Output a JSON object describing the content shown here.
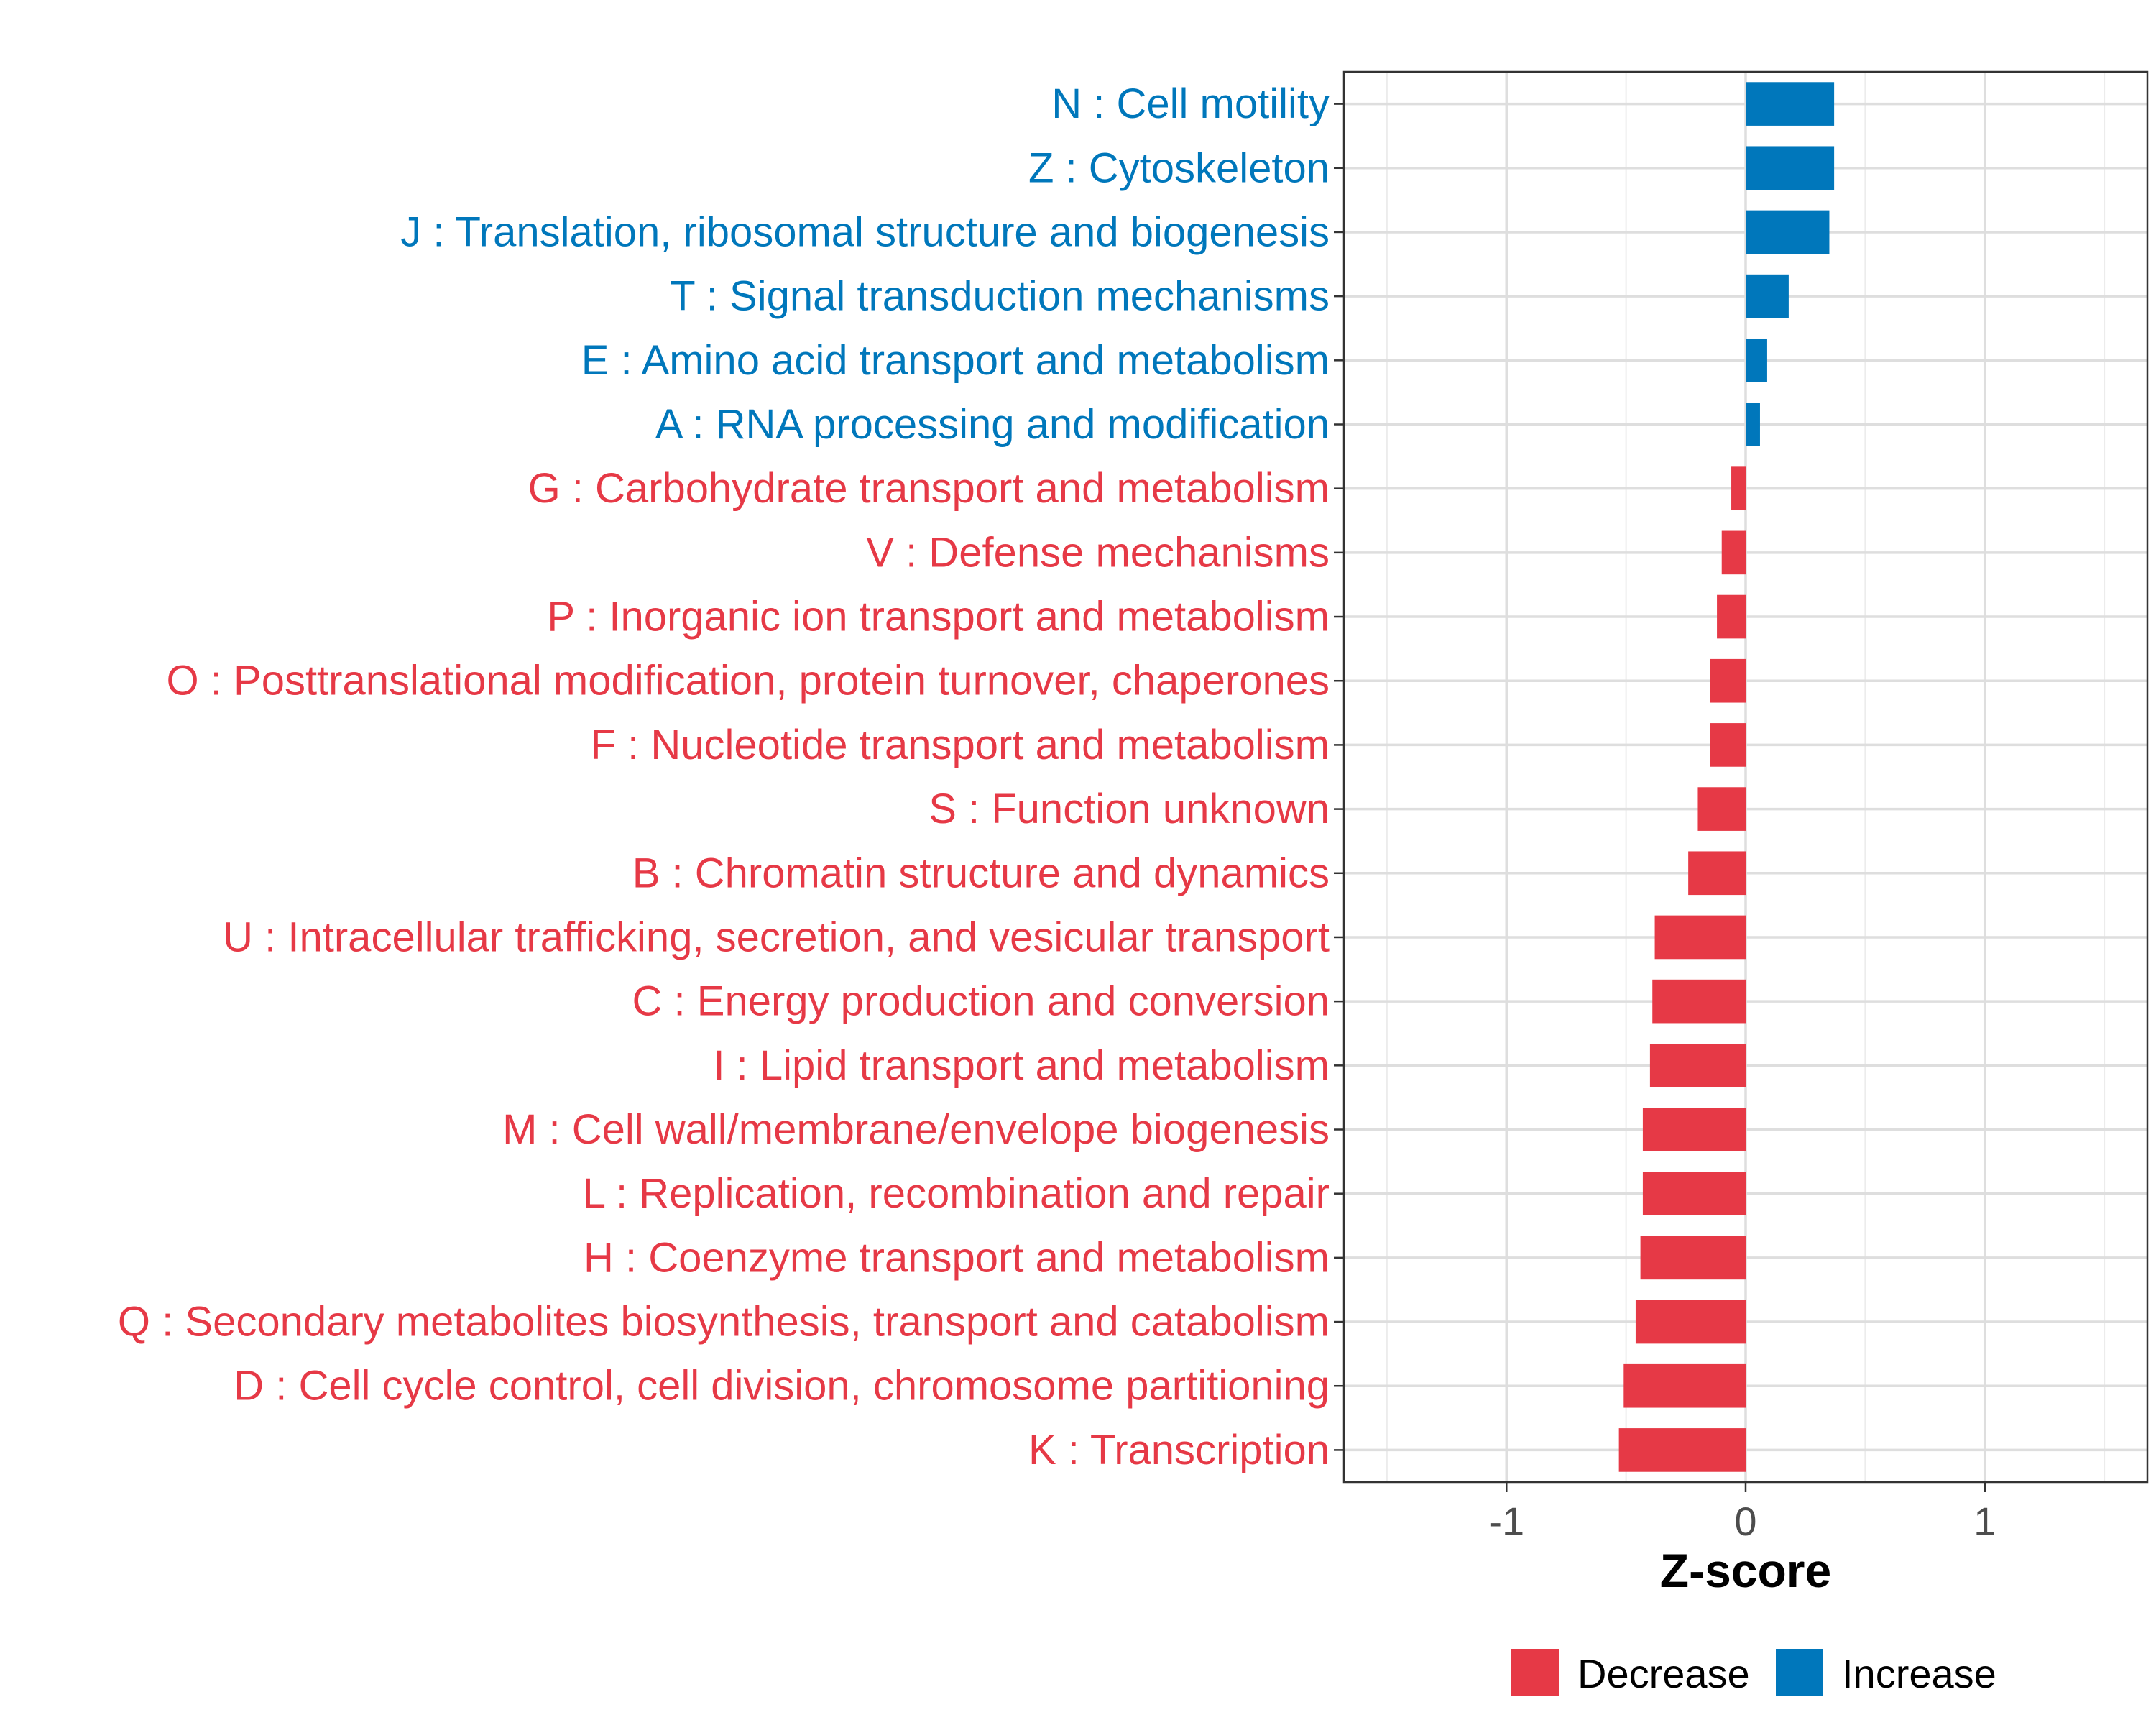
{
  "chart_data": {
    "type": "bar",
    "orientation": "horizontal",
    "title": "",
    "xlabel": "Z-score",
    "ylabel": "",
    "xlim": [
      -1.68,
      1.68
    ],
    "xticks": [
      -1,
      0,
      1
    ],
    "xtick_labels": [
      "-1",
      "0",
      "1"
    ],
    "grid": true,
    "colors": {
      "Decrease": "#e63946",
      "Increase": "#0077bb"
    },
    "legend": {
      "position": "bottom",
      "entries": [
        "Decrease",
        "Increase"
      ]
    },
    "categories": [
      "N : Cell motility",
      "Z : Cytoskeleton",
      "J : Translation, ribosomal structure and biogenesis",
      "T : Signal transduction mechanisms",
      "E : Amino acid transport and metabolism",
      "A : RNA processing and modification",
      "G : Carbohydrate transport and metabolism",
      "V : Defense mechanisms",
      "P : Inorganic ion transport and metabolism",
      "O : Posttranslational modification, protein turnover, chaperones",
      "F : Nucleotide transport and metabolism",
      "S : Function unknown",
      "B : Chromatin structure and dynamics",
      "U : Intracellular trafficking, secretion, and vesicular transport",
      "C : Energy production and conversion",
      "I : Lipid transport and metabolism",
      "M : Cell wall/membrane/envelope biogenesis",
      "L : Replication, recombination and repair",
      "H : Coenzyme transport and metabolism",
      "Q : Secondary metabolites biosynthesis, transport and catabolism",
      "D : Cell cycle control, cell division, chromosome partitioning",
      "K : Transcription"
    ],
    "values": [
      0.37,
      0.37,
      0.35,
      0.18,
      0.09,
      0.06,
      -0.06,
      -0.1,
      -0.12,
      -0.15,
      -0.15,
      -0.2,
      -0.24,
      -0.38,
      -0.39,
      -0.4,
      -0.43,
      -0.43,
      -0.44,
      -0.46,
      -0.51,
      -0.53
    ],
    "groups": [
      "Increase",
      "Increase",
      "Increase",
      "Increase",
      "Increase",
      "Increase",
      "Decrease",
      "Decrease",
      "Decrease",
      "Decrease",
      "Decrease",
      "Decrease",
      "Decrease",
      "Decrease",
      "Decrease",
      "Decrease",
      "Decrease",
      "Decrease",
      "Decrease",
      "Decrease",
      "Decrease",
      "Decrease"
    ]
  }
}
